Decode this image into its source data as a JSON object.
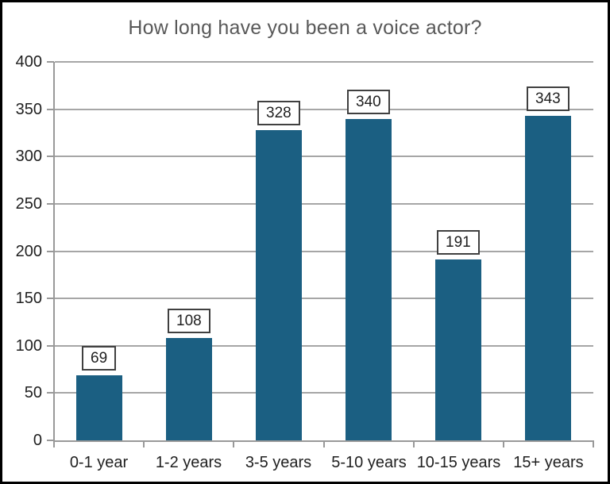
{
  "frame": {
    "border_color": "#000000",
    "background": "#ffffff"
  },
  "chart_data": {
    "type": "bar",
    "title": "How long have you been a voice actor?",
    "categories": [
      "0-1 year",
      "1-2 years",
      "3-5 years",
      "5-10 years",
      "10-15 years",
      "15+ years"
    ],
    "values": [
      69,
      108,
      328,
      340,
      191,
      343
    ],
    "xlabel": "",
    "ylabel": "",
    "ylim": [
      0,
      400
    ],
    "yticks": [
      0,
      50,
      100,
      150,
      200,
      250,
      300,
      350,
      400
    ],
    "grid": true,
    "legend": false,
    "data_labels": true,
    "colors": {
      "bar": "#1B5F82",
      "title": "#595959",
      "axis": "#999999",
      "grid": "#A6A6A6",
      "tick_label": "#1F1F1F",
      "data_label_text": "#1F1F1F",
      "data_label_border": "#404040",
      "data_label_bg": "#FFFFFF"
    }
  }
}
